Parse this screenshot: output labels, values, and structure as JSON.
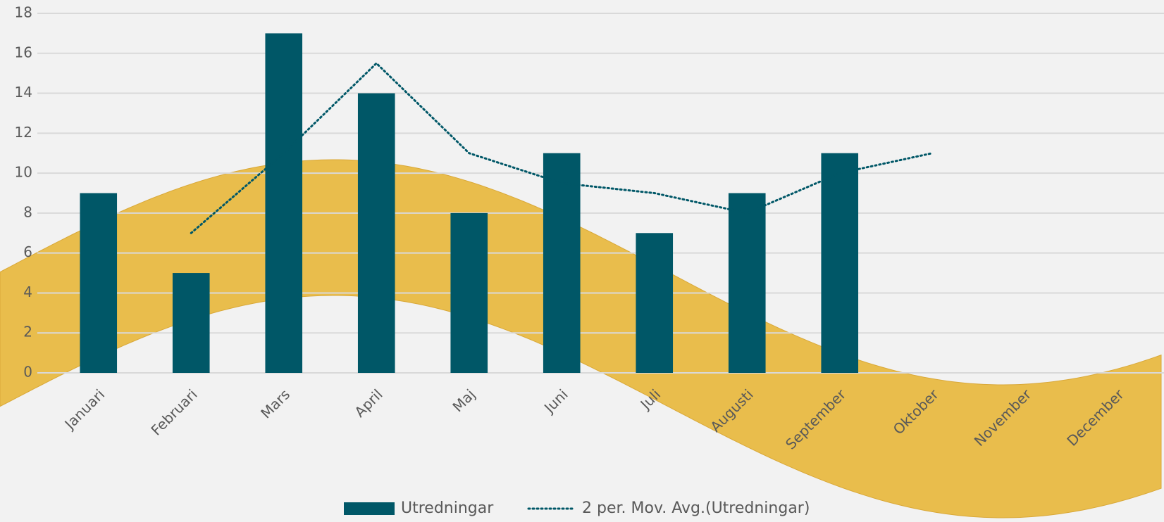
{
  "chart_data": {
    "type": "bar",
    "categories": [
      "Januari",
      "Februari",
      "Mars",
      "April",
      "Maj",
      "Juni",
      "Juli",
      "Augusti",
      "September",
      "Oktober",
      "November",
      "December"
    ],
    "series": [
      {
        "name": "Utredningar",
        "type": "bar",
        "color": "#005767",
        "values": [
          9,
          5,
          17,
          14,
          8,
          11,
          7,
          9,
          11,
          null,
          null,
          null
        ]
      },
      {
        "name": "2 per. Mov. Avg.(Utredningar)",
        "type": "line",
        "color": "#005767",
        "values": [
          null,
          7,
          11,
          15.5,
          11,
          9.5,
          9,
          8,
          10,
          11,
          null,
          null
        ]
      }
    ],
    "ylim": [
      0,
      18
    ],
    "yticks": [
      0,
      2,
      4,
      6,
      8,
      10,
      12,
      14,
      16,
      18
    ],
    "grid": true
  }
}
